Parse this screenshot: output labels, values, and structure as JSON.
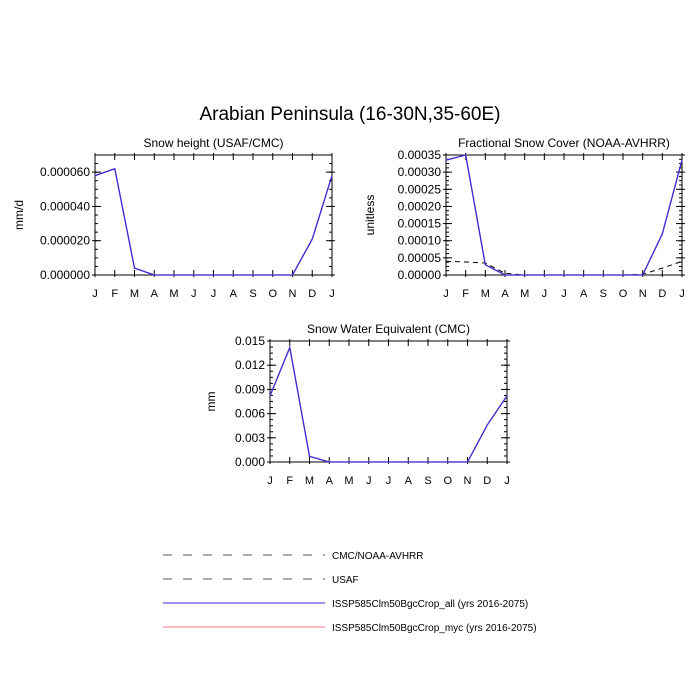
{
  "title": "Arabian Peninsula (16-30N,35-60E)",
  "months": [
    "J",
    "F",
    "M",
    "A",
    "M",
    "J",
    "J",
    "A",
    "S",
    "O",
    "N",
    "D",
    "J"
  ],
  "colors": {
    "all": "#3b2bd8",
    "myc": "#ff7f7f",
    "obs": "#000000",
    "usaf": "#000000"
  },
  "chart_data": [
    {
      "type": "line",
      "title": "Snow height (USAF/CMC)",
      "ylabel": "mm/d",
      "ylim": [
        0,
        7e-05
      ],
      "yticks": [
        "0.000000",
        "0.000020",
        "0.000040",
        "0.000060"
      ],
      "ytick_values": [
        0,
        2e-05,
        4e-05,
        6e-05
      ],
      "x": [
        "J",
        "F",
        "M",
        "A",
        "M",
        "J",
        "J",
        "A",
        "S",
        "O",
        "N",
        "D",
        "J"
      ],
      "series": [
        {
          "name": "ISSP585Clm50BgcCrop_all (yrs 2016-2075)",
          "style": "solid",
          "color": "#3b2bd8",
          "values": [
            5.8e-05,
            6.2e-05,
            4e-06,
            0,
            0,
            0,
            0,
            0,
            0,
            0,
            0,
            2.1e-05,
            5.8e-05
          ]
        },
        {
          "name": "ISSP585Clm50BgcCrop_myc (yrs 2016-2075)",
          "style": "solid",
          "color": "#ff7f7f",
          "values": [
            5.8e-05,
            6.2e-05,
            4e-06,
            0,
            0,
            0,
            0,
            0,
            0,
            0,
            0,
            2.1e-05,
            5.8e-05
          ]
        },
        {
          "name": "CMC/NOAA-AVHRR",
          "style": "dashed",
          "color": "#000000",
          "values": [
            0,
            0,
            0,
            0,
            0,
            0,
            0,
            0,
            0,
            0,
            0,
            0,
            0
          ]
        }
      ]
    },
    {
      "type": "line",
      "title": "Fractional Snow Cover (NOAA-AVHRR)",
      "ylabel": "unitless",
      "ylim": [
        0,
        0.00035
      ],
      "yticks": [
        "0.00000",
        "0.00005",
        "0.00010",
        "0.00015",
        "0.00020",
        "0.00025",
        "0.00030",
        "0.00035"
      ],
      "ytick_values": [
        0,
        5e-05,
        0.0001,
        0.00015,
        0.0002,
        0.00025,
        0.0003,
        0.00035
      ],
      "x": [
        "J",
        "F",
        "M",
        "A",
        "M",
        "J",
        "J",
        "A",
        "S",
        "O",
        "N",
        "D",
        "J"
      ],
      "series": [
        {
          "name": "ISSP585Clm50BgcCrop_all (yrs 2016-2075)",
          "style": "solid",
          "color": "#3b2bd8",
          "values": [
            0.000335,
            0.00035,
            3e-05,
            0,
            0,
            0,
            0,
            0,
            0,
            0,
            0,
            0.00012,
            0.000335
          ]
        },
        {
          "name": "ISSP585Clm50BgcCrop_myc (yrs 2016-2075)",
          "style": "solid",
          "color": "#ff7f7f",
          "values": [
            0.000335,
            0.00035,
            3e-05,
            0,
            0,
            0,
            0,
            0,
            0,
            0,
            0,
            0.00012,
            0.000335
          ]
        },
        {
          "name": "CMC/NOAA-AVHRR",
          "style": "dashed",
          "color": "#000000",
          "values": [
            4e-05,
            3.8e-05,
            3.5e-05,
            5e-06,
            0,
            0,
            0,
            0,
            0,
            0,
            2e-06,
            2e-05,
            4e-05
          ]
        }
      ]
    },
    {
      "type": "line",
      "title": "Snow Water Equivalent (CMC)",
      "ylabel": "mm",
      "ylim": [
        0,
        0.015
      ],
      "yticks": [
        "0.000",
        "0.003",
        "0.006",
        "0.009",
        "0.012",
        "0.015"
      ],
      "ytick_values": [
        0,
        0.003,
        0.006,
        0.009,
        0.012,
        0.015
      ],
      "x": [
        "J",
        "F",
        "M",
        "A",
        "M",
        "J",
        "J",
        "A",
        "S",
        "O",
        "N",
        "D",
        "J"
      ],
      "series": [
        {
          "name": "ISSP585Clm50BgcCrop_all (yrs 2016-2075)",
          "style": "solid",
          "color": "#3b2bd8",
          "values": [
            0.0082,
            0.0142,
            0.0007,
            0,
            0,
            0,
            0,
            0,
            0,
            0,
            0,
            0.0046,
            0.0082
          ]
        },
        {
          "name": "ISSP585Clm50BgcCrop_myc (yrs 2016-2075)",
          "style": "solid",
          "color": "#ff7f7f",
          "values": [
            0.0082,
            0.0142,
            0.0007,
            0,
            0,
            0,
            0,
            0,
            0,
            0,
            0,
            0.0046,
            0.0082
          ]
        },
        {
          "name": "CMC/NOAA-AVHRR",
          "style": "dashed",
          "color": "#000000",
          "values": [
            0,
            0,
            0,
            0,
            0,
            0,
            0,
            0,
            0,
            0,
            0,
            0,
            0
          ]
        }
      ]
    }
  ],
  "legend": [
    {
      "label": "CMC/NOAA-AVHRR",
      "style": "dashed",
      "color": "#000000"
    },
    {
      "label": "USAF",
      "style": "dashed",
      "color": "#000000"
    },
    {
      "label": "ISSP585Clm50BgcCrop_all (yrs 2016-2075)",
      "style": "solid",
      "color": "#3b2bd8"
    },
    {
      "label": "ISSP585Clm50BgcCrop_myc (yrs 2016-2075)",
      "style": "solid",
      "color": "#ff7f7f"
    }
  ]
}
